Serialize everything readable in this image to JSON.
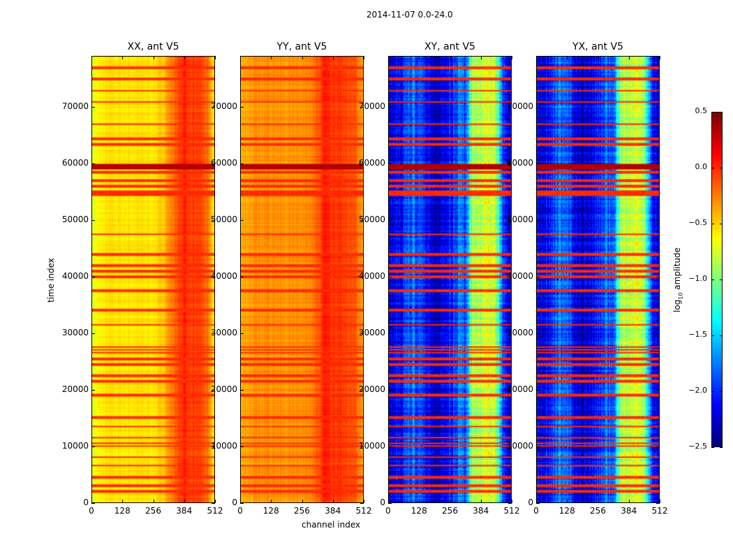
{
  "chart_data": {
    "type": "heatmap",
    "title": "2014-11-07 0.0-24.0",
    "xlabel": "channel index",
    "ylabel": "time index",
    "xlim": [
      0,
      512
    ],
    "ylim": [
      0,
      79000
    ],
    "xticks": [
      "0",
      "128",
      "256",
      "384",
      "512"
    ],
    "yticks": [
      "0",
      "10000",
      "20000",
      "30000",
      "40000",
      "50000",
      "60000",
      "70000"
    ],
    "colorbar": {
      "label": "log10 amplitude",
      "label_main": "log",
      "label_sub": "10",
      "label_rest": " amplitude",
      "range": [
        -2.5,
        0.5
      ],
      "ticks": [
        "0.5",
        "0.0",
        "−0.5",
        "−1.0",
        "−1.5",
        "−2.0",
        "−2.5"
      ],
      "colormap": "jet"
    },
    "flagged_times": [
      2000,
      3000,
      4500,
      6500,
      8000,
      10000,
      10500,
      11500,
      13500,
      15000,
      19000,
      21500,
      22500,
      24500,
      25500,
      26500,
      27000,
      27500,
      31500,
      34000,
      37500,
      40000,
      41000,
      42000,
      44000,
      47500,
      54500,
      55000,
      56000,
      57000,
      58500,
      63500,
      64500,
      67000,
      71000,
      73000,
      75000,
      77000
    ],
    "flagged_value": 0.0,
    "saturated_band": [
      59000,
      60000
    ],
    "panels": [
      {
        "name": "XX",
        "title": "XX, ant V5",
        "channel_bins": [
          0,
          32,
          64,
          96,
          128,
          160,
          192,
          224,
          256,
          288,
          320,
          352,
          384,
          416,
          448,
          480,
          512
        ],
        "profile": [
          -0.7,
          -0.6,
          -0.55,
          -0.55,
          -0.55,
          -0.55,
          -0.55,
          -0.55,
          -0.55,
          -0.5,
          -0.3,
          -0.15,
          0.05,
          -0.1,
          -0.05,
          -0.2,
          -0.6
        ]
      },
      {
        "name": "YY",
        "title": "YY, ant V5",
        "channel_bins": [
          0,
          32,
          64,
          96,
          128,
          160,
          192,
          224,
          256,
          288,
          320,
          352,
          384,
          416,
          448,
          480,
          512
        ],
        "profile": [
          -0.4,
          -0.35,
          -0.3,
          -0.3,
          -0.3,
          -0.3,
          -0.3,
          -0.3,
          -0.3,
          -0.3,
          -0.15,
          0.05,
          -0.05,
          0.0,
          -0.1,
          -0.15,
          -0.4
        ]
      },
      {
        "name": "XY",
        "title": "XY, ant V5",
        "channel_bins": [
          0,
          32,
          64,
          96,
          128,
          160,
          192,
          224,
          256,
          288,
          320,
          352,
          384,
          416,
          448,
          480,
          512
        ],
        "profile": [
          -2.2,
          -2.2,
          -2.0,
          -1.8,
          -1.9,
          -2.2,
          -2.3,
          -2.2,
          -2.1,
          -1.8,
          -1.9,
          -0.8,
          -0.9,
          -0.7,
          -0.9,
          -2.0,
          -2.3
        ]
      },
      {
        "name": "YX",
        "title": "YX, ant V5",
        "channel_bins": [
          0,
          32,
          64,
          96,
          128,
          160,
          192,
          224,
          256,
          288,
          320,
          352,
          384,
          416,
          448,
          480,
          512
        ],
        "profile": [
          -2.2,
          -2.2,
          -2.0,
          -1.8,
          -1.9,
          -2.2,
          -2.3,
          -2.2,
          -2.1,
          -1.8,
          -1.9,
          -0.8,
          -0.9,
          -0.7,
          -0.9,
          -2.0,
          -2.3
        ]
      }
    ]
  }
}
